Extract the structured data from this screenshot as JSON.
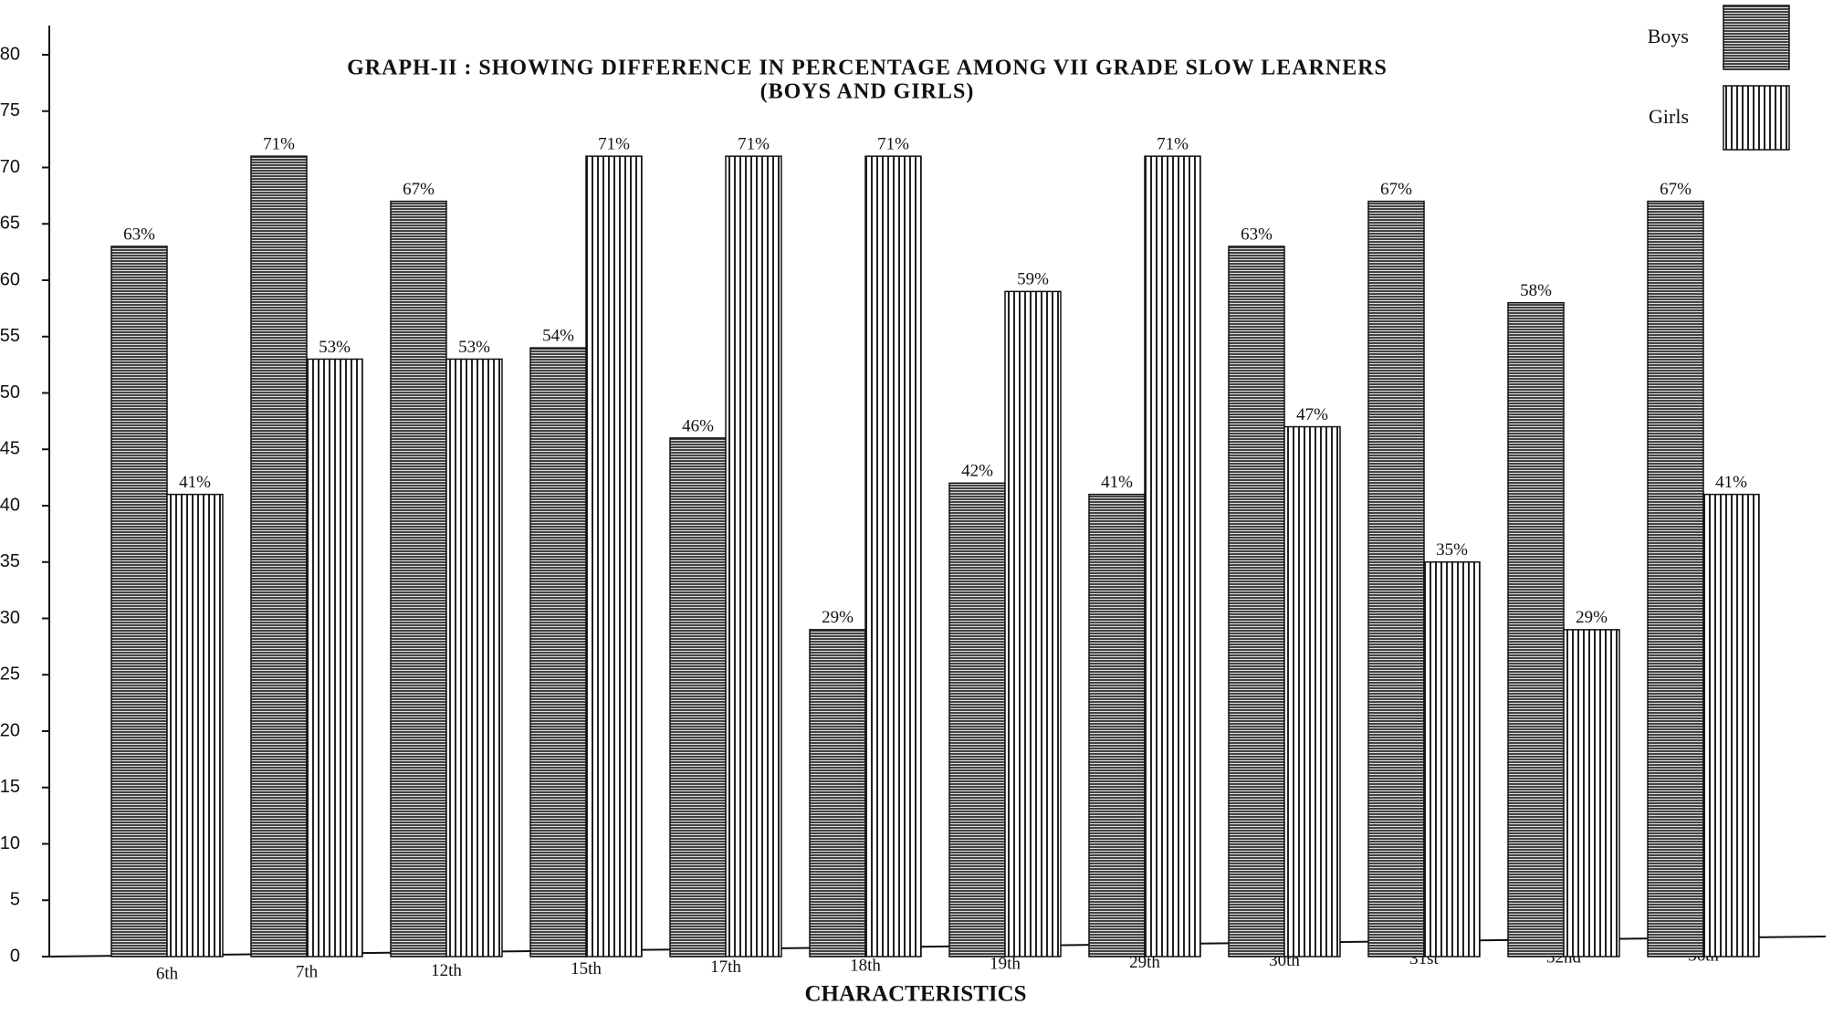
{
  "chart_data": {
    "type": "bar",
    "title": "GRAPH-II : SHOWING DIFFERENCE IN PERCENTAGE AMONG VII GRADE SLOW LEARNERS",
    "subtitle": "(BOYS AND GIRLS)",
    "x_label": "CHARACTERISTICS",
    "categories": [
      "6th",
      "7th",
      "12th",
      "15th",
      "17th",
      "18th",
      "19th",
      "29th",
      "30th",
      "31st",
      "32nd",
      "36th"
    ],
    "series": [
      {
        "name": "Boys",
        "color": "#444444",
        "values": [
          63,
          71,
          67,
          54,
          46,
          29,
          42,
          41,
          63,
          67,
          58,
          67
        ],
        "value_labels": [
          "63%",
          "71%",
          "67%",
          "54%",
          "46%",
          "29%",
          "42%",
          "41%",
          "63%",
          "67%",
          "58%",
          "67%"
        ]
      },
      {
        "name": "Girls",
        "color": "#222222",
        "values": [
          41,
          53,
          53,
          71,
          71,
          71,
          59,
          71,
          47,
          35,
          29,
          41
        ],
        "value_labels": [
          "41%",
          "53%",
          "53%",
          "71%",
          "71%",
          "71%",
          "59%",
          "71%",
          "47%",
          "35%",
          "29%",
          "41%"
        ]
      }
    ],
    "ylim": [
      0,
      82
    ],
    "yticks": [
      0,
      5,
      10,
      15,
      20,
      25,
      30,
      35,
      40,
      45,
      50,
      55,
      60,
      65,
      70,
      75,
      80
    ],
    "legend": "top-right"
  }
}
